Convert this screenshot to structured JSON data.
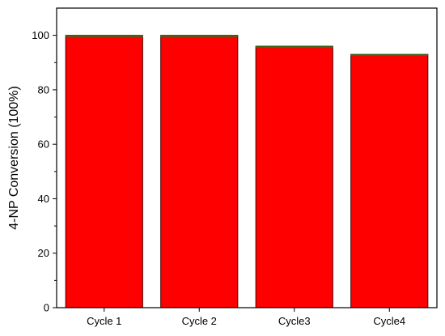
{
  "chart_data": {
    "type": "bar",
    "categories": [
      "Cycle 1",
      "Cycle 2",
      "Cycle3",
      "Cycle4"
    ],
    "values": [
      100,
      100,
      96,
      93
    ],
    "title": "",
    "xlabel": "",
    "ylabel": "4-NP Conversion (100%)",
    "ylim": [
      0,
      110
    ],
    "yticks": [
      0,
      20,
      40,
      60,
      80,
      100
    ],
    "grid": false,
    "bar_color": "#ff0000",
    "bar_edge_color": "#4a0000",
    "bar_top_color": "#3b6b1a"
  }
}
